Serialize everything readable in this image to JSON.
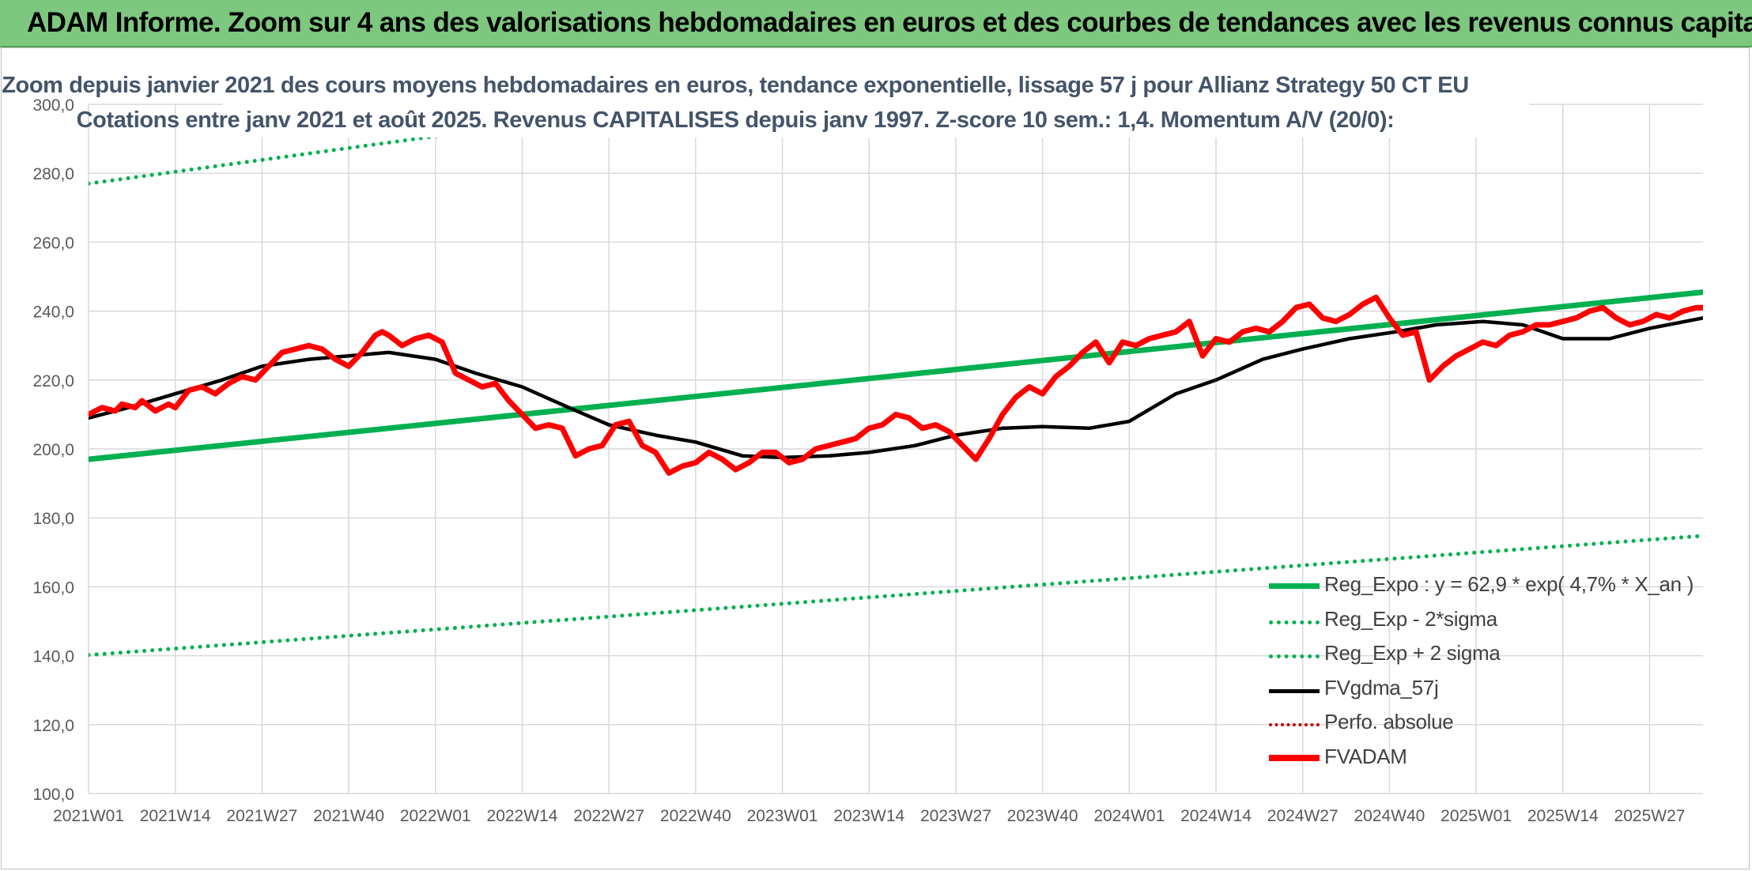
{
  "banner": {
    "title": "ADAM Informe. Zoom sur 4 ans des valorisations hebdomadaires en euros et des courbes de tendances avec les revenus connus capitalisés"
  },
  "colors": {
    "banner": "#7dc77f",
    "reg_expo": "#00b050",
    "fvgdma": "#000000",
    "fvadam": "#ff0000",
    "perfo": "#c00000",
    "subtitle": "#44546a",
    "grid": "#d9d9d9"
  },
  "chart_data": {
    "type": "line",
    "title_line1": "Zoom depuis janvier 2021 des cours moyens hebdomadaires en euros, tendance exponentielle, lissage 57 j pour Allianz Strategy 50 CT EU",
    "title_line2": "Cotations entre janv 2021 et août 2025. Revenus CAPITALISES depuis janv 1997. Z-score 10 sem.: 1,4. Momentum A/V (20/0):",
    "ylim": [
      100,
      300
    ],
    "y_ticks": [
      "100,0",
      "120,0",
      "140,0",
      "160,0",
      "180,0",
      "200,0",
      "220,0",
      "240,0",
      "260,0",
      "280,0",
      "300,0"
    ],
    "x_ticks": [
      "2021W01",
      "2021W14",
      "2021W27",
      "2021W40",
      "2022W01",
      "2022W14",
      "2022W27",
      "2022W40",
      "2023W01",
      "2023W14",
      "2023W27",
      "2023W40",
      "2024W01",
      "2024W14",
      "2024W27",
      "2024W40",
      "2025W01",
      "2025W14",
      "2025W27"
    ],
    "grid": true,
    "legend_position": "bottom-right",
    "series": [
      {
        "name": "Reg_Expo : y = 62,9 * exp( 4,7% *  X_an )",
        "style": "solid-thick",
        "x": [
          0,
          242
        ],
        "y": [
          197.0,
          245.5
        ]
      },
      {
        "name": "Reg_Exp - 2*sigma",
        "style": "dotted",
        "x": [
          0,
          242
        ],
        "y": [
          140.2,
          174.8
        ]
      },
      {
        "name": "Reg_Exp + 2 sigma",
        "style": "dotted",
        "x": [
          0,
          242
        ],
        "y": [
          277.0,
          341.0
        ]
      },
      {
        "name": "FVgdma_57j",
        "style": "solid",
        "x": [
          0,
          6,
          13,
          20,
          26,
          33,
          39,
          45,
          52,
          58,
          65,
          72,
          78,
          85,
          91,
          98,
          104,
          111,
          117,
          124,
          130,
          137,
          143,
          150,
          156,
          163,
          169,
          176,
          182,
          189,
          196,
          202,
          209,
          215,
          221,
          228,
          234,
          242
        ],
        "y": [
          209,
          212,
          216,
          220,
          224,
          226,
          227,
          228,
          226,
          222,
          218,
          212,
          207,
          204,
          202,
          198,
          197.5,
          198,
          199,
          201,
          204,
          206,
          206.5,
          206,
          208,
          216,
          220,
          226,
          229,
          232,
          234,
          236,
          237,
          236,
          232,
          232,
          235,
          238
        ]
      },
      {
        "name": "Perfo. absolue",
        "style": "dotted",
        "x": [],
        "y": []
      },
      {
        "name": "FVADAM",
        "style": "solid-thick",
        "x": [
          0,
          2,
          4,
          5,
          7,
          8,
          10,
          12,
          13,
          15,
          17,
          19,
          21,
          23,
          25,
          27,
          29,
          31,
          33,
          35,
          37,
          39,
          41,
          43,
          44,
          45,
          47,
          49,
          51,
          53,
          55,
          57,
          59,
          61,
          63,
          65,
          67,
          69,
          71,
          73,
          75,
          77,
          79,
          81,
          83,
          85,
          87,
          89,
          91,
          93,
          95,
          97,
          99,
          101,
          103,
          105,
          107,
          109,
          111,
          113,
          115,
          117,
          119,
          121,
          123,
          125,
          127,
          129,
          131,
          133,
          135,
          137,
          139,
          141,
          143,
          145,
          147,
          149,
          151,
          153,
          155,
          157,
          159,
          161,
          163,
          165,
          167,
          169,
          171,
          173,
          175,
          177,
          179,
          181,
          183,
          185,
          187,
          189,
          191,
          193,
          195,
          197,
          199,
          201,
          203,
          205,
          207,
          209,
          211,
          213,
          215,
          217,
          219,
          221,
          223,
          225,
          227,
          229,
          231,
          233,
          235,
          237,
          239,
          241,
          242
        ],
        "y": [
          210,
          212,
          211,
          213,
          212,
          214,
          211,
          213,
          212,
          217,
          218,
          216,
          219,
          221,
          220,
          224,
          228,
          229,
          230,
          229,
          226,
          224,
          228,
          233,
          234,
          233,
          230,
          232,
          233,
          231,
          222,
          220,
          218,
          219,
          214,
          210,
          206,
          207,
          206,
          198,
          200,
          201,
          207,
          208,
          201,
          199,
          193,
          195,
          196,
          199,
          197,
          194,
          196,
          199,
          199,
          196,
          197,
          200,
          201,
          202,
          203,
          206,
          207,
          210,
          209,
          206,
          207,
          205,
          201,
          197,
          203,
          210,
          215,
          218,
          216,
          221,
          224,
          228,
          231,
          225,
          231,
          230,
          232,
          233,
          234,
          237,
          227,
          232,
          231,
          234,
          235,
          234,
          237,
          241,
          242,
          238,
          237,
          239,
          242,
          244,
          238,
          233,
          234,
          220,
          224,
          227,
          229,
          231,
          230,
          233,
          234,
          236,
          236,
          237,
          238,
          240,
          241,
          238,
          236,
          237,
          239,
          238,
          240,
          241,
          241
        ]
      }
    ]
  }
}
